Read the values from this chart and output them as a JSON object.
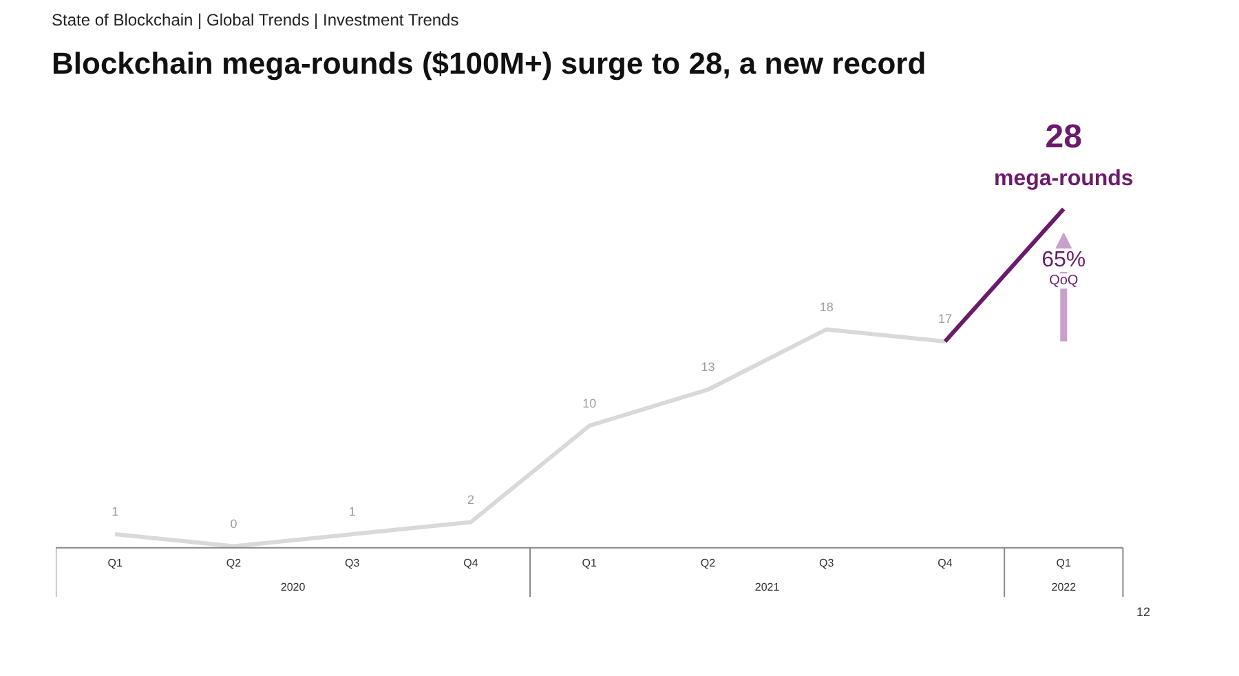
{
  "chart_data": {
    "type": "line",
    "subtitle": "State of Blockchain | Global Trends | Investment Trends",
    "title": "Blockchain mega-rounds ($100M+) surge to 28, a new record",
    "categories": [
      "Q1",
      "Q2",
      "Q3",
      "Q4",
      "Q1",
      "Q2",
      "Q3",
      "Q4",
      "Q1"
    ],
    "series": [
      {
        "color": "#d9d9d9",
        "values": [
          1,
          0,
          1,
          2,
          10,
          13,
          18,
          17,
          null
        ],
        "value_labels": [
          "1",
          "0",
          "1",
          "2",
          "10",
          "13",
          "18",
          "17",
          null
        ]
      },
      {
        "color": "#6a1b6b",
        "values": [
          null,
          null,
          null,
          null,
          null,
          null,
          null,
          17,
          28
        ],
        "value_labels": [
          null,
          null,
          null,
          null,
          null,
          null,
          null,
          null,
          "28"
        ]
      }
    ],
    "annotations": [
      "mega-rounds",
      "65%",
      "QoQ",
      "2020",
      "2021",
      "2022",
      "12"
    ],
    "grid": false,
    "marker": "none",
    "line_style": "solid"
  }
}
